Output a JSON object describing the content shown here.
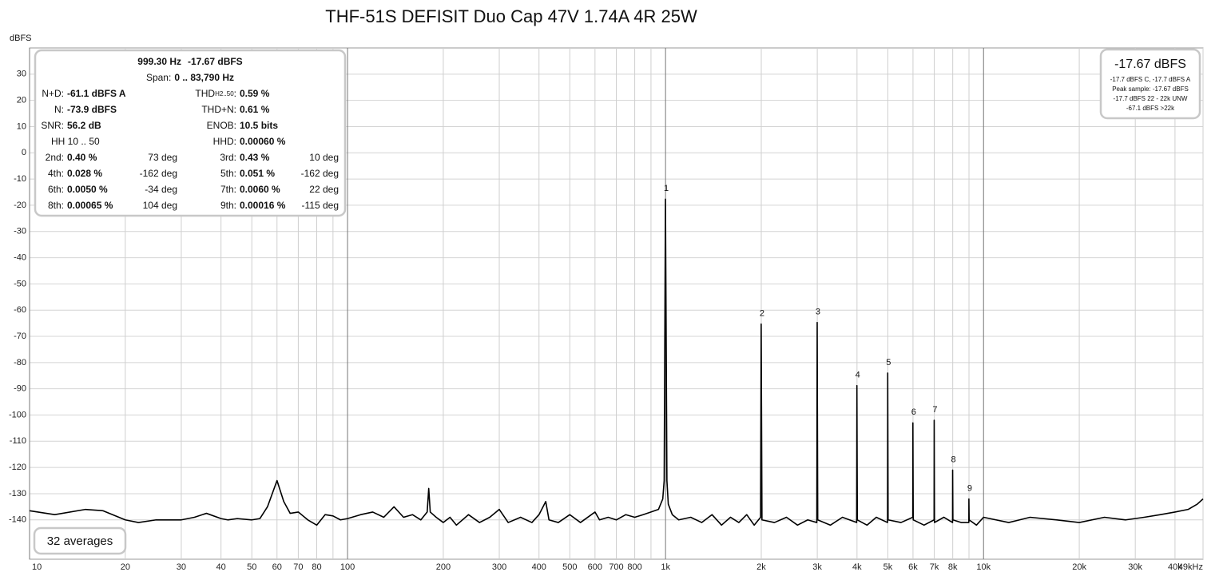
{
  "chart_data": {
    "type": "line",
    "title": "THF-51S DEFISIT Duo Cap 47V 1.74A 4R 25W",
    "y_label": "dBFS",
    "xscale": "log",
    "grid": true,
    "color": "#000000",
    "xlim": [
      10,
      49000
    ],
    "ylim": [
      -155,
      40
    ],
    "yticks": [
      30,
      20,
      10,
      0,
      -10,
      -20,
      -30,
      -40,
      -50,
      -60,
      -70,
      -80,
      -90,
      -100,
      -110,
      -120,
      -130,
      -140
    ],
    "xticks": [
      10,
      20,
      30,
      40,
      50,
      60,
      70,
      80,
      {
        "value": 90,
        "label": null
      },
      100,
      200,
      300,
      400,
      500,
      600,
      700,
      800,
      {
        "value": 900,
        "label": null
      },
      {
        "value": 1000,
        "label": "1k"
      },
      {
        "value": 2000,
        "label": "2k"
      },
      {
        "value": 3000,
        "label": "3k"
      },
      {
        "value": 4000,
        "label": "4k"
      },
      {
        "value": 5000,
        "label": "5k"
      },
      {
        "value": 6000,
        "label": "6k"
      },
      {
        "value": 7000,
        "label": "7k"
      },
      {
        "value": 8000,
        "label": "8k"
      },
      {
        "value": 9000,
        "label": null
      },
      {
        "value": 10000,
        "label": "10k"
      },
      {
        "value": 20000,
        "label": "20k"
      },
      {
        "value": 30000,
        "label": "30k"
      },
      {
        "value": 40000,
        "label": "40k"
      },
      {
        "value": 49000,
        "label": "49kHz"
      }
    ],
    "x": [
      10,
      12,
      15,
      17,
      20,
      22,
      25,
      30,
      33,
      36,
      40,
      42,
      45,
      50,
      53,
      56,
      60,
      63,
      66,
      70,
      75,
      80,
      85,
      90,
      95,
      100,
      110,
      120,
      130,
      140,
      150,
      160,
      170,
      178,
      180,
      182,
      190,
      200,
      210,
      220,
      240,
      260,
      280,
      300,
      320,
      350,
      380,
      400,
      420,
      430,
      460,
      500,
      540,
      600,
      620,
      660,
      700,
      750,
      800,
      850,
      900,
      950,
      980,
      990,
      999.3,
      1010,
      1020,
      1050,
      1100,
      1200,
      1300,
      1400,
      1500,
      1600,
      1700,
      1800,
      1900,
      1990,
      1998.6,
      2010,
      2200,
      2400,
      2600,
      2800,
      2990,
      2997.9,
      3010,
      3300,
      3600,
      3990,
      3997.2,
      4010,
      4300,
      4600,
      4990,
      4996.5,
      5010,
      5500,
      5990,
      5995.8,
      6010,
      6500,
      6990,
      6995.1,
      7010,
      7500,
      7990,
      7994.4,
      8010,
      8500,
      8990,
      8993.7,
      9010,
      9500,
      10000,
      12000,
      14000,
      17000,
      20000,
      24000,
      28000,
      32000,
      36000,
      40000,
      44000,
      47000,
      49000
    ],
    "values": [
      -136.5,
      -138,
      -136,
      -136.5,
      -140,
      -141,
      -140,
      -140,
      -139,
      -137.5,
      -139.5,
      -140,
      -139.5,
      -140,
      -139.5,
      -135,
      -125,
      -133,
      -137.5,
      -137,
      -140,
      -142,
      -138,
      -138.5,
      -140,
      -139.5,
      -138,
      -137,
      -139,
      -135,
      -139,
      -138,
      -140,
      -137,
      -128,
      -137,
      -139,
      -141,
      -139,
      -142,
      -138,
      -141,
      -139,
      -136,
      -141,
      -139,
      -141,
      -138,
      -133,
      -140,
      -141,
      -138,
      -141,
      -137,
      -140,
      -139,
      -140,
      -138,
      -139,
      -138,
      -137,
      -136,
      -132,
      -125,
      -17.67,
      -125,
      -134,
      -138,
      -140,
      -139,
      -141,
      -138,
      -142,
      -139,
      -141,
      -138,
      -142,
      -139,
      -65.3,
      -140,
      -141,
      -139,
      -142,
      -140,
      -141,
      -64.7,
      -140,
      -142,
      -139,
      -141,
      -88.8,
      -140,
      -142,
      -139,
      -141,
      -84,
      -140,
      -141,
      -139,
      -103,
      -140,
      -142,
      -140,
      -102,
      -141,
      -139,
      -141,
      -121,
      -140,
      -141,
      -141,
      -132,
      -140,
      -142,
      -139,
      -141,
      -139,
      -140,
      -141,
      -139,
      -140,
      -139,
      -138,
      -137,
      -136,
      -134,
      -132
    ],
    "peak_labels": [
      "1",
      "2",
      "3",
      "4",
      "5",
      "6",
      "7",
      "8",
      "9"
    ],
    "info_panel": {
      "frequency": "999.30 Hz",
      "level": "-17.67 dBFS",
      "span_label": "Span:",
      "span": "0 .. 83,790 Hz",
      "rows": [
        [
          "N+D:",
          "-61.1 dBFS A",
          [
            "THD",
            "H2..50",
            ":"
          ],
          "0.59 %"
        ],
        [
          "N:",
          "-73.9 dBFS",
          "THD+N:",
          "0.61 %"
        ],
        [
          "SNR:",
          "56.2 dB",
          "ENOB:",
          "10.5 bits"
        ],
        [
          "HH 10 .. 50",
          null,
          "HHD:",
          "0.00060 %"
        ],
        [
          "2nd:",
          "0.40 %",
          "73 deg",
          "3rd:",
          "0.43 %",
          "10 deg"
        ],
        [
          "4th:",
          "0.028 %",
          "-162 deg",
          "5th:",
          "0.051 %",
          "-162 deg"
        ],
        [
          "6th:",
          "0.0050 %",
          "-34 deg",
          "7th:",
          "0.0060 %",
          "22 deg"
        ],
        [
          "8th:",
          "0.00065 %",
          "104 deg",
          "9th:",
          "0.00016 %",
          "-115 deg"
        ]
      ]
    },
    "level_box": {
      "level": "-17.67 dBFS",
      "lines": [
        "-17.7 dBFS C, -17.7 dBFS A",
        "Peak sample: -17.67 dBFS",
        "-17.7 dBFS 22 - 22k UNW",
        "-67.1 dBFS >22k"
      ]
    },
    "averages": "32 averages"
  }
}
